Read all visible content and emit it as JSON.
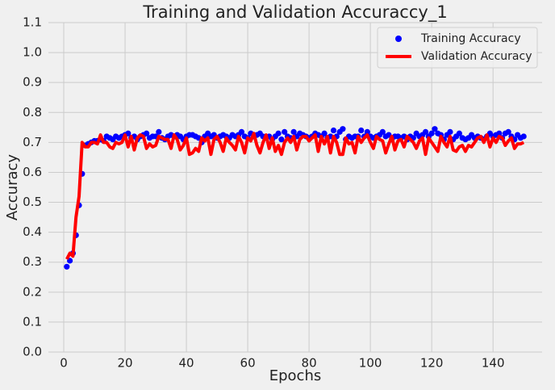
{
  "chart_data": {
    "type": "line",
    "title": "Training and Validation Accuraccy_1",
    "x_label": "Epochs",
    "y_label": "Accuracy",
    "x": [
      1,
      2,
      3,
      4,
      5,
      6,
      7,
      8,
      9,
      10,
      11,
      12,
      13,
      14,
      15,
      16,
      17,
      18,
      19,
      20,
      21,
      22,
      23,
      24,
      25,
      26,
      27,
      28,
      29,
      30,
      31,
      32,
      33,
      34,
      35,
      36,
      37,
      38,
      39,
      40,
      41,
      42,
      43,
      44,
      45,
      46,
      47,
      48,
      49,
      50,
      51,
      52,
      53,
      54,
      55,
      56,
      57,
      58,
      59,
      60,
      61,
      62,
      63,
      64,
      65,
      66,
      67,
      68,
      69,
      70,
      71,
      72,
      73,
      74,
      75,
      76,
      77,
      78,
      79,
      80,
      81,
      82,
      83,
      84,
      85,
      86,
      87,
      88,
      89,
      90,
      91,
      92,
      93,
      94,
      95,
      96,
      97,
      98,
      99,
      100,
      101,
      102,
      103,
      104,
      105,
      106,
      107,
      108,
      109,
      110,
      111,
      112,
      113,
      114,
      115,
      116,
      117,
      118,
      119,
      120,
      121,
      122,
      123,
      124,
      125,
      126,
      127,
      128,
      129,
      130,
      131,
      132,
      133,
      134,
      135,
      136,
      137,
      138,
      139,
      140,
      141,
      142,
      143,
      144,
      145,
      146,
      147,
      148,
      149,
      150
    ],
    "series": [
      {
        "name": "Training Accuracy",
        "color": "#0000ff",
        "mode": "markers",
        "values": [
          0.285,
          0.305,
          0.33,
          0.39,
          0.49,
          0.595,
          0.69,
          0.695,
          0.7,
          0.705,
          0.705,
          0.71,
          0.705,
          0.72,
          0.715,
          0.71,
          0.72,
          0.715,
          0.72,
          0.725,
          0.73,
          0.715,
          0.72,
          0.71,
          0.72,
          0.725,
          0.73,
          0.715,
          0.72,
          0.72,
          0.735,
          0.715,
          0.71,
          0.72,
          0.725,
          0.72,
          0.725,
          0.72,
          0.71,
          0.72,
          0.725,
          0.725,
          0.72,
          0.715,
          0.7,
          0.72,
          0.73,
          0.72,
          0.725,
          0.715,
          0.72,
          0.725,
          0.72,
          0.715,
          0.725,
          0.72,
          0.725,
          0.735,
          0.72,
          0.715,
          0.73,
          0.72,
          0.725,
          0.73,
          0.72,
          0.715,
          0.72,
          0.71,
          0.72,
          0.73,
          0.71,
          0.735,
          0.72,
          0.715,
          0.735,
          0.72,
          0.73,
          0.725,
          0.72,
          0.715,
          0.72,
          0.73,
          0.725,
          0.72,
          0.73,
          0.715,
          0.72,
          0.74,
          0.72,
          0.735,
          0.745,
          0.71,
          0.72,
          0.715,
          0.72,
          0.72,
          0.74,
          0.72,
          0.735,
          0.72,
          0.715,
          0.72,
          0.725,
          0.735,
          0.72,
          0.725,
          0.71,
          0.72,
          0.72,
          0.715,
          0.72,
          0.71,
          0.72,
          0.715,
          0.73,
          0.72,
          0.725,
          0.735,
          0.72,
          0.73,
          0.745,
          0.73,
          0.725,
          0.71,
          0.725,
          0.735,
          0.71,
          0.72,
          0.73,
          0.715,
          0.71,
          0.715,
          0.725,
          0.715,
          0.72,
          0.715,
          0.71,
          0.72,
          0.73,
          0.72,
          0.725,
          0.73,
          0.715,
          0.73,
          0.735,
          0.72,
          0.71,
          0.725,
          0.715,
          0.72
        ]
      },
      {
        "name": "Validation Accuracy",
        "color": "#ff0000",
        "mode": "lines",
        "values": [
          0.31,
          0.33,
          0.32,
          0.45,
          0.52,
          0.7,
          0.685,
          0.685,
          0.7,
          0.7,
          0.695,
          0.725,
          0.7,
          0.7,
          0.685,
          0.68,
          0.7,
          0.695,
          0.7,
          0.725,
          0.685,
          0.72,
          0.675,
          0.715,
          0.725,
          0.72,
          0.68,
          0.695,
          0.685,
          0.69,
          0.72,
          0.715,
          0.71,
          0.71,
          0.68,
          0.725,
          0.71,
          0.675,
          0.69,
          0.715,
          0.66,
          0.665,
          0.68,
          0.67,
          0.715,
          0.705,
          0.715,
          0.66,
          0.71,
          0.72,
          0.7,
          0.67,
          0.715,
          0.7,
          0.69,
          0.675,
          0.72,
          0.7,
          0.665,
          0.715,
          0.705,
          0.73,
          0.69,
          0.665,
          0.7,
          0.725,
          0.68,
          0.715,
          0.67,
          0.69,
          0.66,
          0.7,
          0.715,
          0.7,
          0.72,
          0.675,
          0.71,
          0.72,
          0.72,
          0.705,
          0.715,
          0.725,
          0.67,
          0.72,
          0.695,
          0.72,
          0.665,
          0.72,
          0.7,
          0.66,
          0.66,
          0.715,
          0.695,
          0.7,
          0.665,
          0.72,
          0.7,
          0.715,
          0.725,
          0.7,
          0.68,
          0.72,
          0.71,
          0.705,
          0.665,
          0.695,
          0.72,
          0.675,
          0.705,
          0.71,
          0.685,
          0.72,
          0.71,
          0.7,
          0.68,
          0.705,
          0.715,
          0.66,
          0.715,
          0.7,
          0.685,
          0.67,
          0.72,
          0.7,
          0.685,
          0.72,
          0.675,
          0.67,
          0.685,
          0.69,
          0.67,
          0.69,
          0.685,
          0.7,
          0.715,
          0.72,
          0.7,
          0.725,
          0.685,
          0.715,
          0.7,
          0.72,
          0.715,
          0.69,
          0.705,
          0.715,
          0.68,
          0.695,
          0.695,
          0.7
        ]
      }
    ],
    "xlim": [
      -5,
      156
    ],
    "xticks": [
      0,
      20,
      40,
      60,
      80,
      100,
      120,
      140
    ],
    "ylim": [
      0,
      1.1
    ],
    "yticks": [
      {
        "value": 0,
        "label": "0.0"
      },
      0.1,
      0.2,
      0.3,
      0.4,
      0.5,
      0.6,
      0.7,
      0.8,
      0.9,
      {
        "value": 1,
        "label": "1.0"
      },
      1.1
    ],
    "grid": true,
    "legend": "upper right"
  }
}
